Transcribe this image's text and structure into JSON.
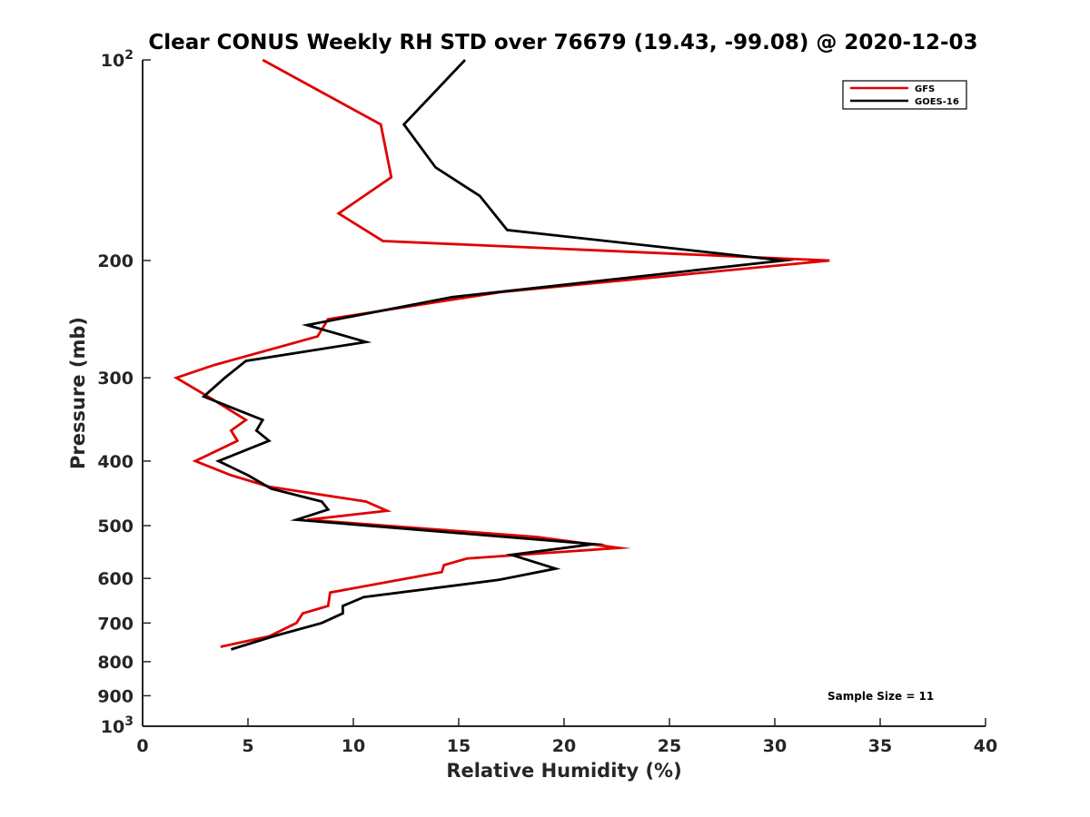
{
  "chart_data": {
    "type": "line",
    "title": "Clear CONUS Weekly RH STD over 76679 (19.43, -99.08) @ 2020-12-03",
    "xlabel": "Relative Humidity (%)",
    "ylabel": "Pressure (mb)",
    "xlim": [
      0,
      40
    ],
    "ylim": [
      100,
      1000
    ],
    "yscale": "log",
    "y_reversed": true,
    "grid": false,
    "legend_position": "top-right",
    "x_ticks": [
      "0",
      "5",
      "10",
      "15",
      "20",
      "25",
      "30",
      "35",
      "40"
    ],
    "y_ticks": [
      {
        "value": 100,
        "label": "10",
        "exp": "2"
      },
      {
        "value": 200,
        "label": "200"
      },
      {
        "value": 300,
        "label": "300"
      },
      {
        "value": 400,
        "label": "400"
      },
      {
        "value": 500,
        "label": "500"
      },
      {
        "value": 600,
        "label": "600"
      },
      {
        "value": 700,
        "label": "700"
      },
      {
        "value": 800,
        "label": "800"
      },
      {
        "value": 900,
        "label": "900"
      },
      {
        "value": 1000,
        "label": "10",
        "exp": "3"
      }
    ],
    "annotation": "Sample Size = 11",
    "series": [
      {
        "name": "GFS",
        "color": "#e00000",
        "points": [
          [
            5.7,
            100
          ],
          [
            11.3,
            125
          ],
          [
            11.8,
            150
          ],
          [
            9.3,
            170
          ],
          [
            11.4,
            187
          ],
          [
            32.6,
            200
          ],
          [
            17.0,
            223
          ],
          [
            8.8,
            245
          ],
          [
            8.3,
            260
          ],
          [
            3.4,
            287
          ],
          [
            1.6,
            300
          ],
          [
            3.1,
            320
          ],
          [
            4.9,
            347
          ],
          [
            4.2,
            360
          ],
          [
            4.5,
            373
          ],
          [
            2.5,
            400
          ],
          [
            4.2,
            420
          ],
          [
            6.0,
            437
          ],
          [
            10.6,
            460
          ],
          [
            11.6,
            475
          ],
          [
            7.8,
            490
          ],
          [
            18.7,
            520
          ],
          [
            22.6,
            540
          ],
          [
            15.4,
            560
          ],
          [
            14.3,
            573
          ],
          [
            14.2,
            587
          ],
          [
            8.9,
            630
          ],
          [
            8.8,
            660
          ],
          [
            7.6,
            677
          ],
          [
            7.3,
            700
          ],
          [
            6.0,
            733
          ],
          [
            3.7,
            760
          ]
        ]
      },
      {
        "name": "GOES-16",
        "color": "#000000",
        "points": [
          [
            15.3,
            100
          ],
          [
            12.4,
            125
          ],
          [
            13.9,
            145
          ],
          [
            16.0,
            160
          ],
          [
            17.3,
            180
          ],
          [
            30.4,
            200
          ],
          [
            14.7,
            227
          ],
          [
            7.8,
            250
          ],
          [
            10.6,
            265
          ],
          [
            4.9,
            283
          ],
          [
            3.9,
            300
          ],
          [
            2.9,
            320
          ],
          [
            5.7,
            347
          ],
          [
            5.4,
            360
          ],
          [
            6.0,
            373
          ],
          [
            3.6,
            400
          ],
          [
            5.0,
            420
          ],
          [
            6.1,
            440
          ],
          [
            8.5,
            460
          ],
          [
            8.8,
            473
          ],
          [
            7.3,
            490
          ],
          [
            21.4,
            533
          ],
          [
            17.5,
            553
          ],
          [
            19.6,
            580
          ],
          [
            16.9,
            603
          ],
          [
            10.5,
            640
          ],
          [
            9.5,
            660
          ],
          [
            9.5,
            677
          ],
          [
            8.5,
            700
          ],
          [
            6.2,
            733
          ],
          [
            4.2,
            767
          ]
        ]
      }
    ]
  }
}
